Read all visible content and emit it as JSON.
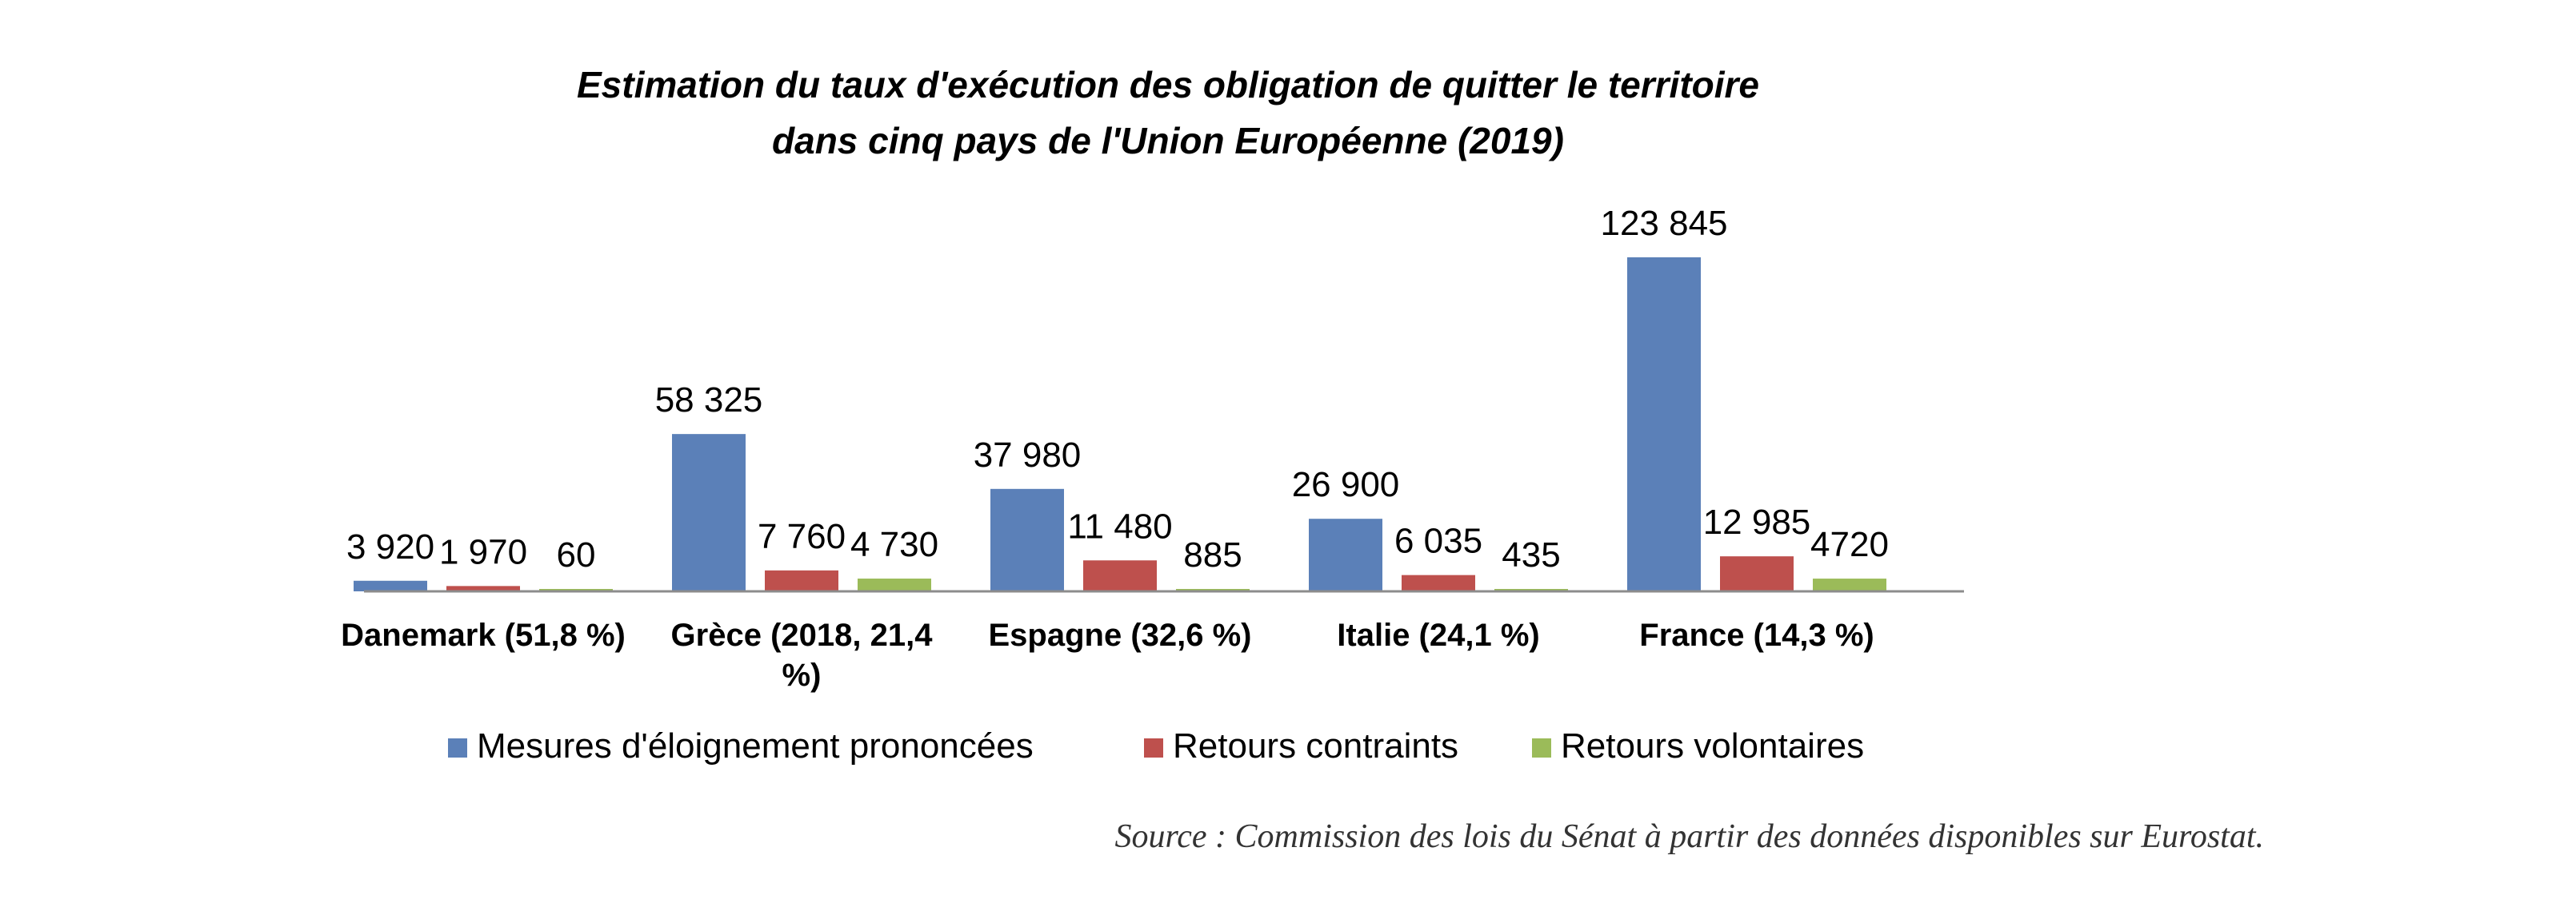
{
  "chart_data": {
    "type": "bar",
    "title_line1": "Estimation du taux d'exécution des obligation de quitter le territoire",
    "title_line2": "dans cinq pays de l'Union Européenne (2019)",
    "categories": [
      [
        "Danemark (51,8 %)"
      ],
      [
        "Grèce (2018, 21,4",
        "%)"
      ],
      [
        "Espagne (32,6 %)"
      ],
      [
        "Italie (24,1 %)"
      ],
      [
        "France (14,3 %)"
      ]
    ],
    "series": [
      {
        "name": "Mesures d'éloignement prononcées",
        "color": "#5B80B8",
        "values": [
          3920,
          58325,
          37980,
          26900,
          123845
        ],
        "labels": [
          "3 920",
          "58 325",
          "37 980",
          "26 900",
          "123 845"
        ]
      },
      {
        "name": "Retours contraints",
        "color": "#BE504D",
        "values": [
          1970,
          7760,
          11480,
          6035,
          12985
        ],
        "labels": [
          "1 970",
          "7 760",
          "11 480",
          "6 035",
          "12 985"
        ]
      },
      {
        "name": "Retours volontaires",
        "color": "#9BBB59",
        "values": [
          60,
          4730,
          885,
          435,
          4720
        ],
        "labels": [
          "60",
          "4 730",
          "885",
          "435",
          "4720"
        ]
      }
    ],
    "ylim": [
      0,
      123845
    ],
    "grid": false,
    "legend_position": "bottom",
    "xlabel": "",
    "ylabel": ""
  },
  "source": "Source : Commission des lois du Sénat à partir des données disponibles sur Eurostat."
}
